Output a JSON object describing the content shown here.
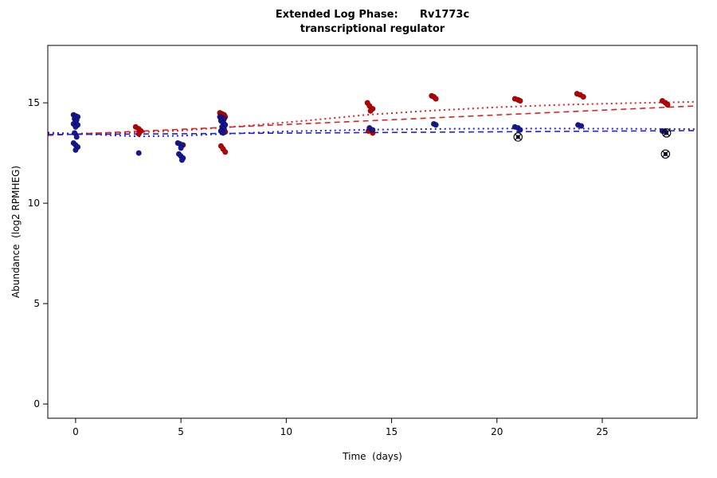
{
  "chart_data": {
    "type": "scatter",
    "title_line1": "Extended Log Phase:      Rv1773c",
    "title_line2": "transcriptional regulator",
    "xlabel": "Time  (days)",
    "ylabel": "Abundance  (log2 RPMHEG)",
    "xlim": [
      -1.32,
      29.5
    ],
    "ylim": [
      -0.71,
      17.86
    ],
    "xticks": [
      0,
      5,
      10,
      15,
      20,
      25
    ],
    "yticks": [
      0,
      5,
      10,
      15
    ],
    "grid": false,
    "legend": "none",
    "colors": {
      "red_points": "#C00000",
      "blue_points": "#16169B",
      "red_line": "#E02020",
      "blue_line": "#2121DF",
      "axis": "#000000"
    },
    "series": [
      {
        "name": "red-samples",
        "color": "#C00000",
        "points": [
          [
            2.85,
            13.8
          ],
          [
            3.0,
            13.7
          ],
          [
            3.1,
            13.6
          ],
          [
            3.0,
            13.45
          ],
          [
            5.1,
            12.9
          ],
          [
            6.85,
            14.5
          ],
          [
            6.95,
            14.45
          ],
          [
            7.05,
            14.4
          ],
          [
            7.1,
            14.3
          ],
          [
            6.9,
            14.2
          ],
          [
            7.0,
            14.1
          ],
          [
            7.05,
            13.95
          ],
          [
            6.9,
            13.6
          ],
          [
            7.1,
            13.55
          ],
          [
            6.9,
            12.85
          ],
          [
            7.0,
            12.7
          ],
          [
            7.1,
            12.55
          ],
          [
            13.85,
            15.0
          ],
          [
            13.95,
            14.85
          ],
          [
            14.1,
            14.7
          ],
          [
            14.0,
            14.6
          ],
          [
            13.9,
            13.6
          ],
          [
            14.1,
            13.5
          ],
          [
            16.9,
            15.35
          ],
          [
            17.0,
            15.3
          ],
          [
            17.1,
            15.2
          ],
          [
            20.85,
            15.2
          ],
          [
            21.0,
            15.15
          ],
          [
            21.1,
            15.1
          ],
          [
            23.8,
            15.45
          ],
          [
            23.95,
            15.4
          ],
          [
            24.1,
            15.3
          ],
          [
            27.85,
            15.1
          ],
          [
            28.0,
            15.0
          ],
          [
            28.1,
            14.9
          ]
        ]
      },
      {
        "name": "blue-samples",
        "color": "#16169B",
        "points": [
          [
            -0.1,
            14.4
          ],
          [
            0.0,
            14.35
          ],
          [
            0.1,
            14.3
          ],
          [
            -0.05,
            14.2
          ],
          [
            0.05,
            14.15
          ],
          [
            0.0,
            14.05
          ],
          [
            -0.1,
            13.95
          ],
          [
            0.1,
            13.9
          ],
          [
            0.0,
            13.8
          ],
          [
            -0.05,
            13.5
          ],
          [
            0.05,
            13.3
          ],
          [
            -0.1,
            13.0
          ],
          [
            0.0,
            12.9
          ],
          [
            0.1,
            12.8
          ],
          [
            0.0,
            12.65
          ],
          [
            3.0,
            12.5
          ],
          [
            4.85,
            13.0
          ],
          [
            4.95,
            12.95
          ],
          [
            5.05,
            12.9
          ],
          [
            5.0,
            12.75
          ],
          [
            4.9,
            12.45
          ],
          [
            5.0,
            12.35
          ],
          [
            5.1,
            12.25
          ],
          [
            5.05,
            12.15
          ],
          [
            6.85,
            14.3
          ],
          [
            6.95,
            14.25
          ],
          [
            7.05,
            14.2
          ],
          [
            6.9,
            14.1
          ],
          [
            7.0,
            14.0
          ],
          [
            7.1,
            13.9
          ],
          [
            6.95,
            13.8
          ],
          [
            7.05,
            13.7
          ],
          [
            6.9,
            13.6
          ],
          [
            7.0,
            13.5
          ],
          [
            13.95,
            13.75
          ],
          [
            14.1,
            13.65
          ],
          [
            17.0,
            13.95
          ],
          [
            17.1,
            13.9
          ],
          [
            20.85,
            13.8
          ],
          [
            21.0,
            13.75
          ],
          [
            21.1,
            13.65
          ],
          [
            23.85,
            13.9
          ],
          [
            24.0,
            13.85
          ],
          [
            27.85,
            13.6
          ],
          [
            28.0,
            13.55
          ]
        ]
      }
    ],
    "outliers": {
      "name": "flagged-points",
      "symbol": "circle-x",
      "color": "#000000",
      "points": [
        [
          21.0,
          13.3
        ],
        [
          28.05,
          13.5
        ],
        [
          28.0,
          12.45
        ]
      ]
    },
    "trend_lines": [
      {
        "name": "red-dashed-fit",
        "color": "#E02020",
        "dash": "7 5",
        "width": 1.6,
        "points": [
          [
            -1.32,
            13.38
          ],
          [
            29.5,
            14.85
          ]
        ]
      },
      {
        "name": "red-dotted-fit",
        "color": "#E02020",
        "dash": "2 4",
        "width": 2.0,
        "points": [
          [
            -1.32,
            13.45
          ],
          [
            2,
            13.5
          ],
          [
            5,
            13.62
          ],
          [
            8,
            13.85
          ],
          [
            11,
            14.12
          ],
          [
            14,
            14.42
          ],
          [
            17,
            14.62
          ],
          [
            20,
            14.78
          ],
          [
            23,
            14.9
          ],
          [
            26,
            14.98
          ],
          [
            29.5,
            15.05
          ]
        ]
      },
      {
        "name": "blue-dashed-fit",
        "color": "#2121DF",
        "dash": "7 5",
        "width": 1.6,
        "points": [
          [
            -1.32,
            13.42
          ],
          [
            29.5,
            13.62
          ]
        ]
      },
      {
        "name": "blue-dotted-fit",
        "color": "#2121DF",
        "dash": "2 4",
        "width": 2.0,
        "points": [
          [
            -1.32,
            13.52
          ],
          [
            1,
            13.42
          ],
          [
            3,
            13.33
          ],
          [
            5,
            13.36
          ],
          [
            7,
            13.45
          ],
          [
            10,
            13.58
          ],
          [
            14,
            13.66
          ],
          [
            18,
            13.71
          ],
          [
            22,
            13.72
          ],
          [
            26,
            13.71
          ],
          [
            29.5,
            13.69
          ]
        ]
      }
    ]
  }
}
